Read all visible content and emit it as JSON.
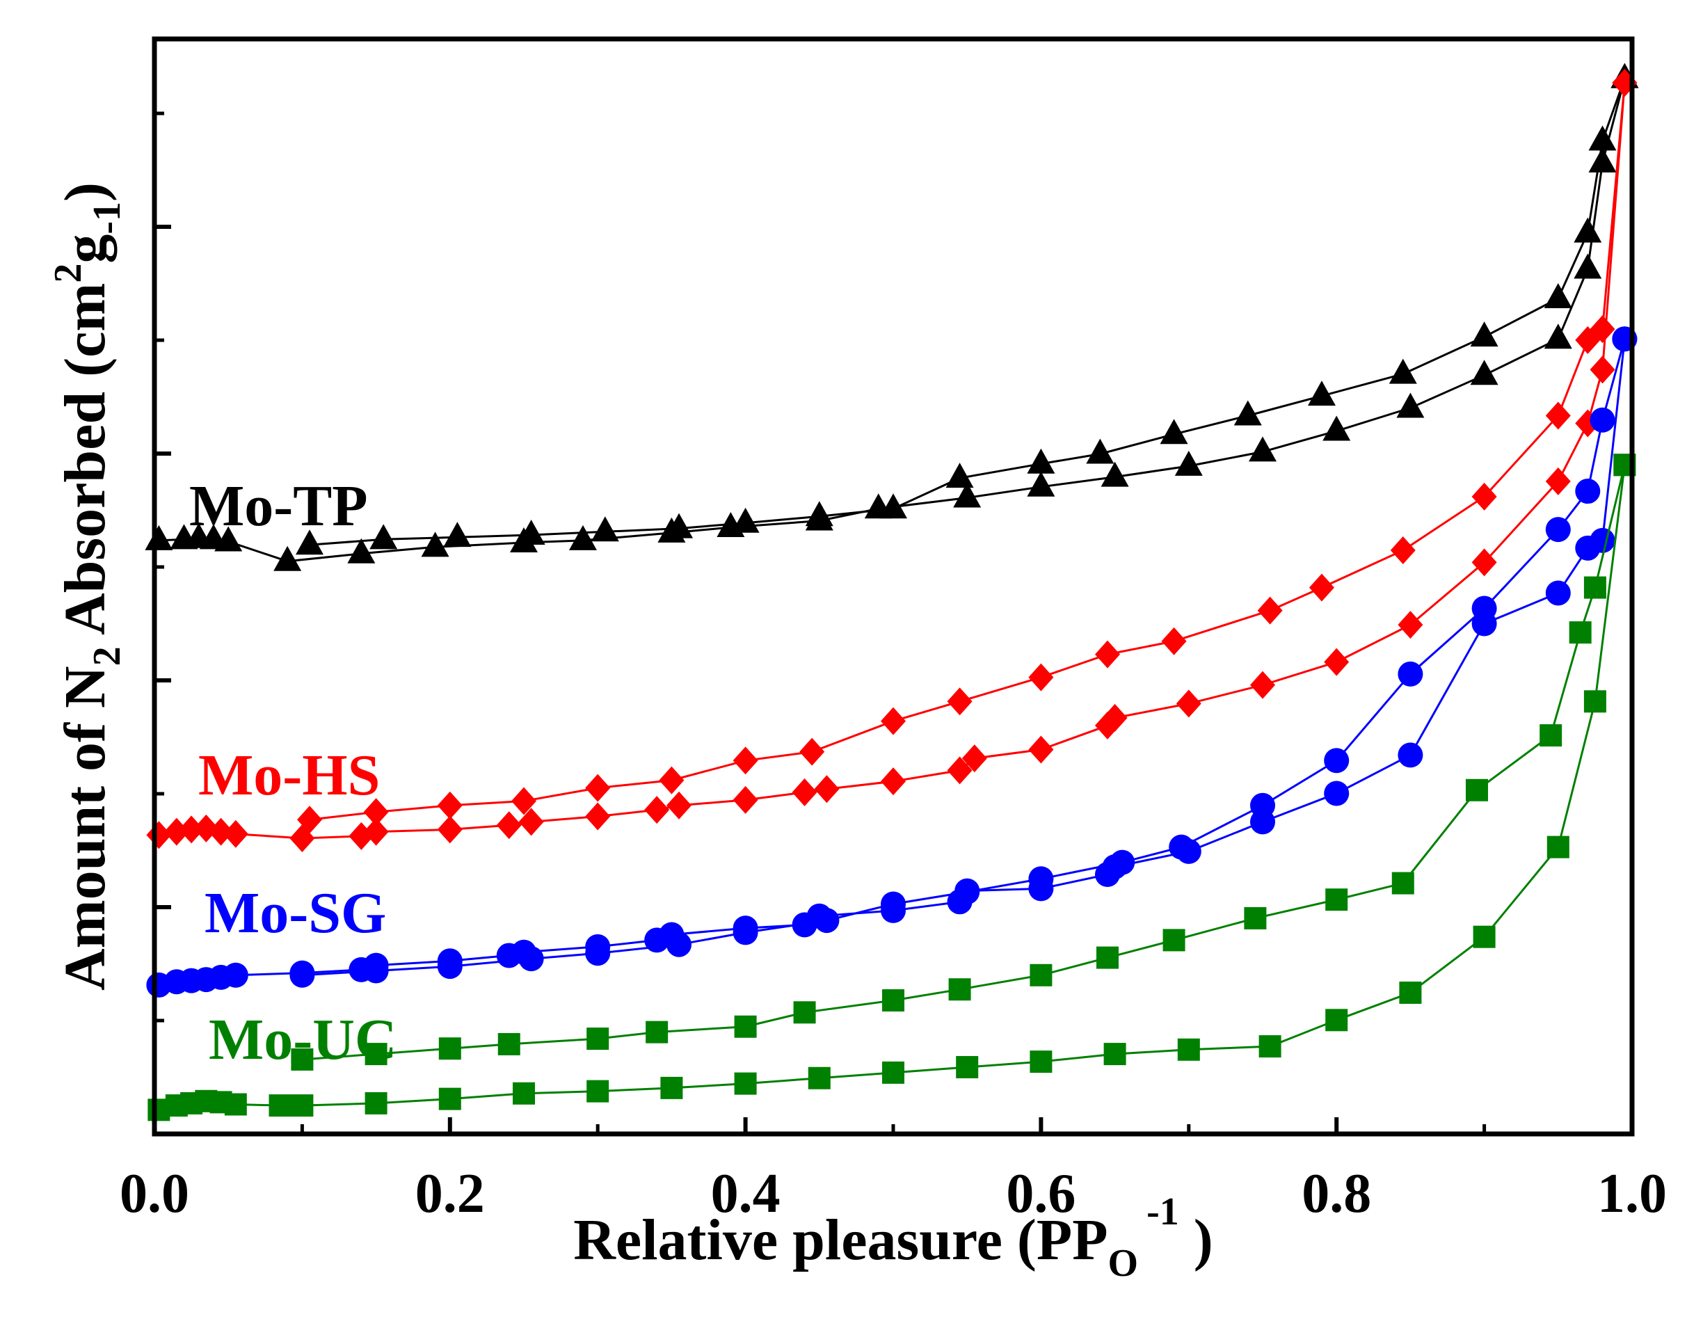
{
  "chart_data": {
    "type": "line",
    "title": "",
    "xlabel": {
      "main": "Relative pleasure (PP",
      "sub": "O",
      "sup": "-1",
      "close": " )"
    },
    "ylabel": {
      "part1": "Amount of N",
      "sub1": "2",
      "part2": " Absorbed (cm",
      "sup1": "2",
      "part3": "g",
      "sub2": "-1",
      "close": ")"
    },
    "xlim": [
      0.0,
      1.0
    ],
    "ylim": [
      0,
      100
    ],
    "x_ticks": [
      0.0,
      0.2,
      0.4,
      0.6,
      0.8,
      1.0
    ],
    "x_tick_labels": [
      "0.0",
      "0.2",
      "0.4",
      "0.6",
      "0.8",
      "1.0"
    ],
    "y_tick_labels_shown": false,
    "grid": false,
    "legend": "inline-labels",
    "series": [
      {
        "name": "Mo-TP",
        "label": "Mo-TP",
        "color": "#000000",
        "marker": "triangle",
        "adsorption": {
          "x": [
            0.003,
            0.02,
            0.03,
            0.04,
            0.05,
            0.09,
            0.14,
            0.19,
            0.25,
            0.29,
            0.35,
            0.39,
            0.45,
            0.49,
            0.55,
            0.6,
            0.65,
            0.7,
            0.75,
            0.8,
            0.85,
            0.9,
            0.95,
            0.97,
            0.98,
            0.995
          ],
          "y": [
            54.2,
            54.3,
            54.4,
            54.3,
            54.1,
            52.3,
            53.0,
            53.6,
            54.0,
            54.2,
            54.9,
            55.4,
            56.0,
            57.1,
            58.1,
            59.1,
            60.0,
            61.0,
            62.3,
            64.2,
            66.3,
            69.3,
            72.6,
            79.0,
            88.7,
            96.4
          ]
        },
        "desorption": {
          "x": [
            0.995,
            0.98,
            0.97,
            0.95,
            0.9,
            0.845,
            0.79,
            0.74,
            0.69,
            0.64,
            0.6,
            0.545,
            0.5,
            0.45,
            0.4,
            0.355,
            0.305,
            0.255,
            0.205,
            0.155,
            0.105
          ],
          "y": [
            96.4,
            90.7,
            82.3,
            76.3,
            72.8,
            69.4,
            67.4,
            65.6,
            63.9,
            62.1,
            61.2,
            59.9,
            57.1,
            56.4,
            55.8,
            55.3,
            55.0,
            54.7,
            54.5,
            54.3,
            53.8
          ]
        }
      },
      {
        "name": "Mo-HS",
        "label": "Mo-HS",
        "color": "#ff0000",
        "marker": "diamond",
        "adsorption": {
          "x": [
            0.003,
            0.015,
            0.025,
            0.035,
            0.045,
            0.055,
            0.1,
            0.14,
            0.15,
            0.2,
            0.24,
            0.255,
            0.3,
            0.34,
            0.355,
            0.4,
            0.44,
            0.455,
            0.5,
            0.545,
            0.555,
            0.6,
            0.645,
            0.65,
            0.7,
            0.75,
            0.8,
            0.85,
            0.9,
            0.95,
            0.97,
            0.98,
            0.995
          ],
          "y": [
            27.3,
            27.6,
            27.8,
            27.9,
            27.6,
            27.4,
            27.0,
            27.2,
            27.6,
            27.8,
            28.2,
            28.5,
            29.0,
            29.6,
            30.0,
            30.5,
            31.2,
            31.5,
            32.2,
            33.2,
            34.3,
            35.1,
            37.3,
            38.0,
            39.3,
            41.0,
            43.1,
            46.5,
            52.2,
            59.6,
            64.9,
            69.8,
            96.0
          ]
        },
        "desorption": {
          "x": [
            0.995,
            0.98,
            0.97,
            0.95,
            0.9,
            0.845,
            0.79,
            0.755,
            0.69,
            0.645,
            0.6,
            0.545,
            0.5,
            0.445,
            0.4,
            0.35,
            0.3,
            0.25,
            0.2,
            0.15,
            0.105
          ],
          "y": [
            96.0,
            73.5,
            72.5,
            65.6,
            58.2,
            53.3,
            49.9,
            47.8,
            45.0,
            43.8,
            41.7,
            39.5,
            37.7,
            34.9,
            34.1,
            32.3,
            31.6,
            30.4,
            30.0,
            29.4,
            28.7
          ]
        }
      },
      {
        "name": "Mo-SG",
        "label": "Mo-SG",
        "color": "#0000ff",
        "marker": "circle",
        "adsorption": {
          "x": [
            0.003,
            0.015,
            0.025,
            0.035,
            0.045,
            0.055,
            0.1,
            0.14,
            0.15,
            0.2,
            0.24,
            0.25,
            0.3,
            0.34,
            0.35,
            0.4,
            0.44,
            0.45,
            0.5,
            0.545,
            0.55,
            0.6,
            0.645,
            0.65,
            0.7,
            0.75,
            0.8,
            0.85,
            0.9,
            0.95,
            0.97,
            0.98,
            0.995
          ],
          "y": [
            13.6,
            13.9,
            14.0,
            14.1,
            14.3,
            14.5,
            14.7,
            15.0,
            15.4,
            15.8,
            16.3,
            16.6,
            17.1,
            17.7,
            18.2,
            18.8,
            19.1,
            19.9,
            20.4,
            21.2,
            22.2,
            22.4,
            23.7,
            24.4,
            25.8,
            28.5,
            31.1,
            34.6,
            46.6,
            49.4,
            53.5,
            54.2,
            72.6
          ]
        },
        "desorption": {
          "x": [
            0.995,
            0.98,
            0.97,
            0.95,
            0.9,
            0.85,
            0.8,
            0.75,
            0.695,
            0.655,
            0.6,
            0.55,
            0.5,
            0.455,
            0.4,
            0.355,
            0.3,
            0.255,
            0.2,
            0.15,
            0.1
          ],
          "y": [
            72.6,
            65.2,
            58.7,
            55.2,
            48.0,
            42.0,
            34.1,
            30.0,
            26.2,
            24.8,
            23.3,
            22.1,
            21.0,
            19.5,
            18.4,
            17.3,
            16.5,
            16.0,
            15.3,
            14.9,
            14.5
          ]
        }
      },
      {
        "name": "Mo-UC",
        "label": "Mo-UC",
        "color": "#008000",
        "marker": "square",
        "adsorption": {
          "x": [
            0.003,
            0.015,
            0.025,
            0.035,
            0.045,
            0.055,
            0.085,
            0.1,
            0.15,
            0.2,
            0.25,
            0.3,
            0.35,
            0.4,
            0.45,
            0.5,
            0.55,
            0.6,
            0.65,
            0.7,
            0.755,
            0.8,
            0.85,
            0.9,
            0.95,
            0.975,
            0.995
          ],
          "y": [
            2.2,
            2.6,
            2.8,
            3.0,
            2.9,
            2.7,
            2.6,
            2.6,
            2.8,
            3.2,
            3.7,
            3.9,
            4.2,
            4.6,
            5.1,
            5.6,
            6.1,
            6.6,
            7.3,
            7.7,
            8.0,
            10.4,
            12.9,
            18.0,
            26.2,
            39.5,
            61.1
          ]
        },
        "desorption": {
          "x": [
            0.995,
            0.975,
            0.965,
            0.945,
            0.895,
            0.845,
            0.8,
            0.745,
            0.69,
            0.645,
            0.6,
            0.545,
            0.5,
            0.44,
            0.4,
            0.34,
            0.3,
            0.24,
            0.2,
            0.15,
            0.1
          ],
          "y": [
            61.1,
            49.9,
            45.8,
            36.4,
            31.4,
            22.9,
            21.4,
            19.7,
            17.7,
            16.1,
            14.5,
            13.2,
            12.2,
            11.1,
            9.8,
            9.3,
            8.7,
            8.2,
            7.8,
            7.3,
            6.8
          ]
        }
      }
    ]
  }
}
